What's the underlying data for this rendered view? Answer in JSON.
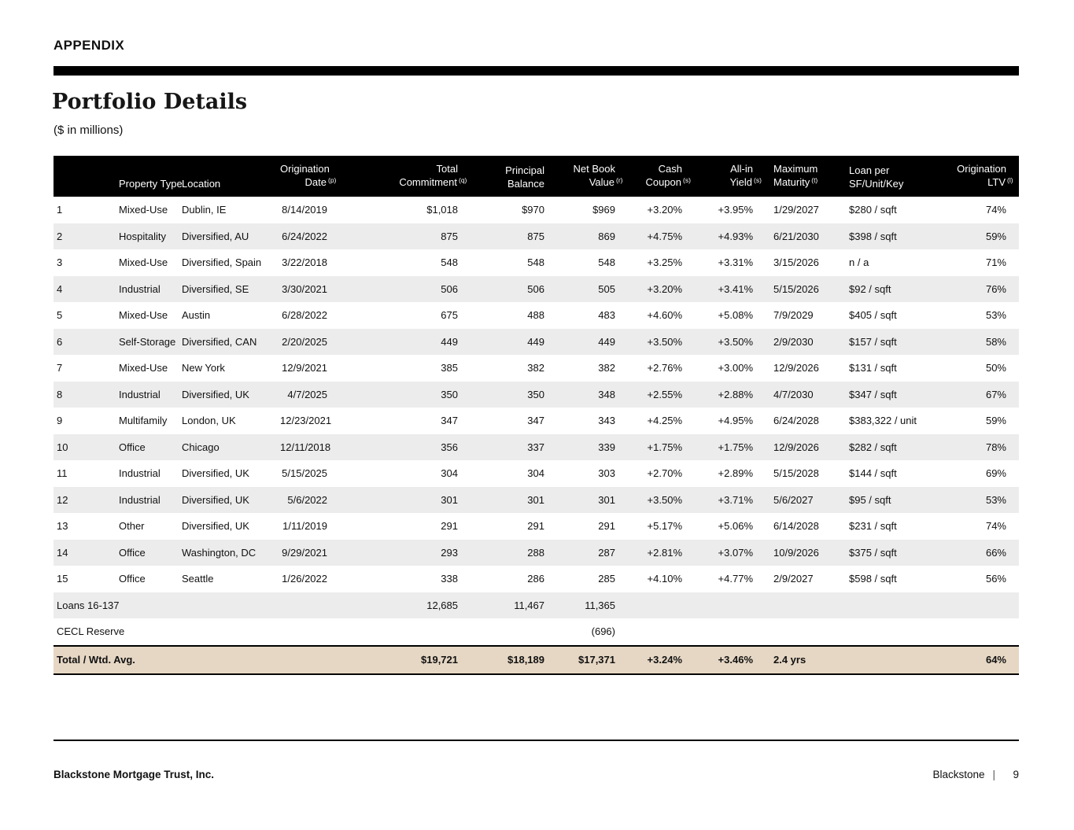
{
  "page": {
    "appendix_label": "APPENDIX",
    "title": "Portfolio Details",
    "subtitle": "($ in millions)"
  },
  "table": {
    "columns": [
      {
        "id": "row-number",
        "line1": "",
        "line2": "",
        "align": "left"
      },
      {
        "id": "property-type",
        "line1": "",
        "line2": "Property Type",
        "align": "left"
      },
      {
        "id": "location",
        "line1": "",
        "line2": "Location",
        "align": "left"
      },
      {
        "id": "origination-date",
        "line1": "Origination",
        "line2": "Date",
        "sup": "(p)",
        "align": "right"
      },
      {
        "id": "total-commitment",
        "line1": "Total",
        "line2": "Commitment",
        "sup": "(q)",
        "align": "right"
      },
      {
        "id": "principal-balance",
        "line1": "Principal",
        "line2": "Balance",
        "align": "right"
      },
      {
        "id": "net-book-value",
        "line1": "Net Book",
        "line2": "Value",
        "sup": "(r)",
        "align": "right"
      },
      {
        "id": "cash-coupon",
        "line1": "Cash",
        "line2": "Coupon",
        "sup": "(s)",
        "align": "right"
      },
      {
        "id": "all-in-yield",
        "line1": "All-in",
        "line2": "Yield",
        "sup": "(s)",
        "align": "right"
      },
      {
        "id": "maximum-maturity",
        "line1": "Maximum",
        "line2": "Maturity",
        "sup": "(t)",
        "align": "left"
      },
      {
        "id": "loan-per",
        "line1": "Loan per",
        "line2": "SF/Unit/Key",
        "align": "left"
      },
      {
        "id": "origination-ltv",
        "line1": "Origination",
        "line2": "LTV",
        "sup": "(l)",
        "align": "right"
      }
    ],
    "rows": [
      {
        "type": "loan",
        "cells": [
          "1",
          "Mixed-Use",
          "Dublin, IE",
          "8/14/2019",
          "$1,018",
          "$970",
          "$969",
          "+3.20%",
          "+3.95%",
          "1/29/2027",
          "$280 / sqft",
          "74%"
        ]
      },
      {
        "type": "loan",
        "cells": [
          "2",
          "Hospitality",
          "Diversified, AU",
          "6/24/2022",
          "875",
          "875",
          "869",
          "+4.75%",
          "+4.93%",
          "6/21/2030",
          "$398 / sqft",
          "59%"
        ]
      },
      {
        "type": "loan",
        "cells": [
          "3",
          "Mixed-Use",
          "Diversified, Spain",
          "3/22/2018",
          "548",
          "548",
          "548",
          "+3.25%",
          "+3.31%",
          "3/15/2026",
          "n / a",
          "71%"
        ]
      },
      {
        "type": "loan",
        "cells": [
          "4",
          "Industrial",
          "Diversified, SE",
          "3/30/2021",
          "506",
          "506",
          "505",
          "+3.20%",
          "+3.41%",
          "5/15/2026",
          "$92 / sqft",
          "76%"
        ]
      },
      {
        "type": "loan",
        "cells": [
          "5",
          "Mixed-Use",
          "Austin",
          "6/28/2022",
          "675",
          "488",
          "483",
          "+4.60%",
          "+5.08%",
          "7/9/2029",
          "$405 / sqft",
          "53%"
        ]
      },
      {
        "type": "loan",
        "cells": [
          "6",
          "Self-Storage",
          "Diversified, CAN",
          "2/20/2025",
          "449",
          "449",
          "449",
          "+3.50%",
          "+3.50%",
          "2/9/2030",
          "$157 / sqft",
          "58%"
        ]
      },
      {
        "type": "loan",
        "cells": [
          "7",
          "Mixed-Use",
          "New York",
          "12/9/2021",
          "385",
          "382",
          "382",
          "+2.76%",
          "+3.00%",
          "12/9/2026",
          "$131 / sqft",
          "50%"
        ]
      },
      {
        "type": "loan",
        "cells": [
          "8",
          "Industrial",
          "Diversified, UK",
          "4/7/2025",
          "350",
          "350",
          "348",
          "+2.55%",
          "+2.88%",
          "4/7/2030",
          "$347 / sqft",
          "67%"
        ]
      },
      {
        "type": "loan",
        "cells": [
          "9",
          "Multifamily",
          "London, UK",
          "12/23/2021",
          "347",
          "347",
          "343",
          "+4.25%",
          "+4.95%",
          "6/24/2028",
          "$383,322 / unit",
          "59%"
        ]
      },
      {
        "type": "loan",
        "cells": [
          "10",
          "Office",
          "Chicago",
          "12/11/2018",
          "356",
          "337",
          "339",
          "+1.75%",
          "+1.75%",
          "12/9/2026",
          "$282 / sqft",
          "78%"
        ]
      },
      {
        "type": "loan",
        "cells": [
          "11",
          "Industrial",
          "Diversified, UK",
          "5/15/2025",
          "304",
          "304",
          "303",
          "+2.70%",
          "+2.89%",
          "5/15/2028",
          "$144 / sqft",
          "69%"
        ]
      },
      {
        "type": "loan",
        "cells": [
          "12",
          "Industrial",
          "Diversified, UK",
          "5/6/2022",
          "301",
          "301",
          "301",
          "+3.50%",
          "+3.71%",
          "5/6/2027",
          "$95 / sqft",
          "53%"
        ]
      },
      {
        "type": "loan",
        "cells": [
          "13",
          "Other",
          "Diversified, UK",
          "1/11/2019",
          "291",
          "291",
          "291",
          "+5.17%",
          "+5.06%",
          "6/14/2028",
          "$231 / sqft",
          "74%"
        ]
      },
      {
        "type": "loan",
        "cells": [
          "14",
          "Office",
          "Washington, DC",
          "9/29/2021",
          "293",
          "288",
          "287",
          "+2.81%",
          "+3.07%",
          "10/9/2026",
          "$375 / sqft",
          "66%"
        ]
      },
      {
        "type": "loan",
        "cells": [
          "15",
          "Office",
          "Seattle",
          "1/26/2022",
          "338",
          "286",
          "285",
          "+4.10%",
          "+4.77%",
          "2/9/2027",
          "$598 / sqft",
          "56%"
        ]
      },
      {
        "type": "group",
        "cells": [
          "Loans 16-137",
          "",
          "",
          "",
          "12,685",
          "11,467",
          "11,365",
          "",
          "",
          "",
          "",
          ""
        ]
      },
      {
        "type": "group",
        "cells": [
          "CECL Reserve",
          "",
          "",
          "",
          "",
          "",
          "(696)",
          "",
          "",
          "",
          "",
          ""
        ]
      },
      {
        "type": "total",
        "cells": [
          "Total / Wtd. Avg.",
          "",
          "",
          "",
          "$19,721",
          "$18,189",
          "$17,371",
          "+3.24%",
          "+3.46%",
          "2.4 yrs",
          "",
          "64%"
        ]
      }
    ]
  },
  "footer": {
    "company": "Blackstone Mortgage Trust, Inc.",
    "brand": "Blackstone",
    "separator": "|",
    "page_number": "9"
  },
  "colors": {
    "header_bg": "#000000",
    "row_stripe": "#ececec",
    "total_row_bg": "#e6d7c4",
    "text": "#111111"
  }
}
